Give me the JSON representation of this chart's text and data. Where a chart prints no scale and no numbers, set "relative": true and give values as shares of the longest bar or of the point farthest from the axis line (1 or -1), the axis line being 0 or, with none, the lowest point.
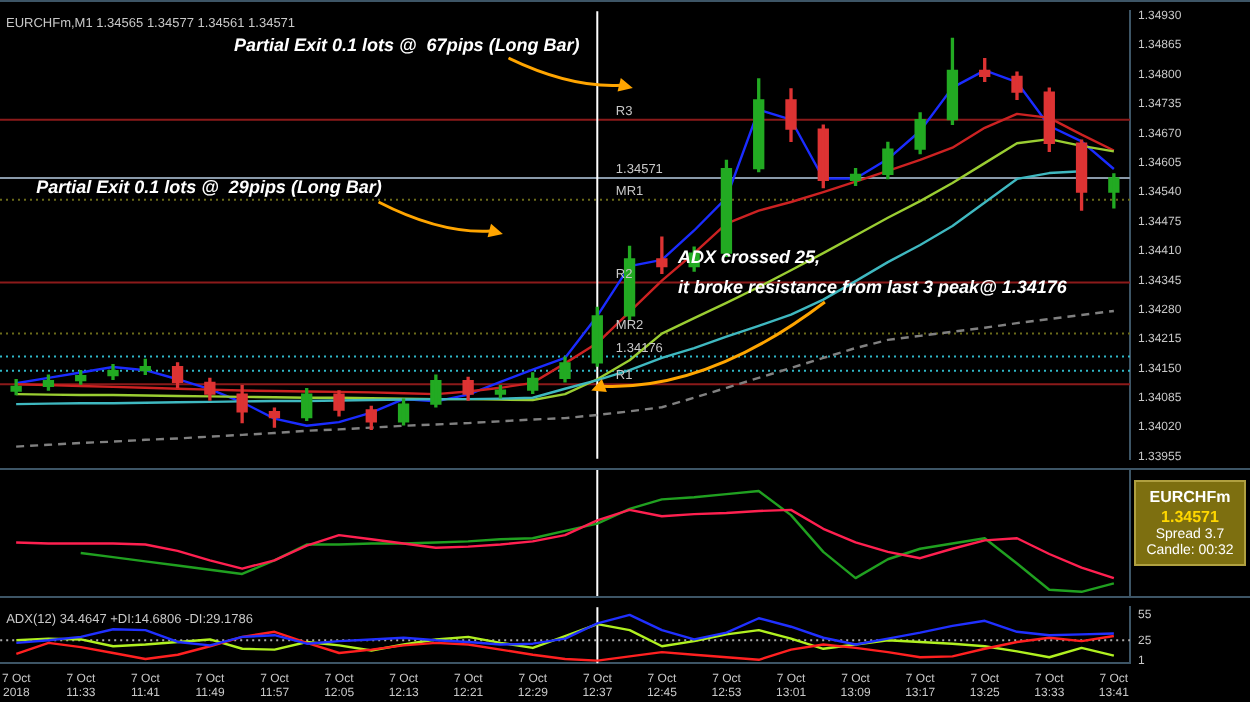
{
  "chart_data": [
    {
      "type": "candlestick",
      "title": "EURCHFm,M1 1.34565 1.34577 1.34561 1.34571",
      "categories": [
        "7 Oct 2018",
        null,
        "7 Oct 11:33",
        null,
        "7 Oct 11:41",
        null,
        "7 Oct 11:49",
        null,
        "7 Oct 11:57",
        null,
        "7 Oct 12:05",
        null,
        "7 Oct 12:13",
        null,
        "7 Oct 12:21",
        null,
        "7 Oct 12:29",
        null,
        "7 Oct 12:37",
        null,
        "7 Oct 12:45",
        null,
        "7 Oct 12:53",
        null,
        "7 Oct 13:01",
        null,
        "7 Oct 13:09",
        null,
        "7 Oct 13:17",
        null,
        "7 Oct 13:25",
        null,
        "7 Oct 13:33",
        null,
        "7 Oct 13:41"
      ],
      "ohlc": [
        [
          1.341,
          1.34125,
          1.34092,
          1.3411
        ],
        [
          1.3411,
          1.34135,
          1.34102,
          1.34123
        ],
        [
          1.34123,
          1.34145,
          1.34115,
          1.34134
        ],
        [
          1.34134,
          1.34158,
          1.34126,
          1.34145
        ],
        [
          1.34145,
          1.3417,
          1.34137,
          1.34154
        ],
        [
          1.34154,
          1.34162,
          1.34108,
          1.34119
        ],
        [
          1.34119,
          1.34128,
          1.3408,
          1.34093
        ],
        [
          1.34093,
          1.34112,
          1.3403,
          1.34054
        ],
        [
          1.34054,
          1.34062,
          1.3402,
          1.34041
        ],
        [
          1.34041,
          1.34105,
          1.34035,
          1.34093
        ],
        [
          1.34093,
          1.341,
          1.34045,
          1.34058
        ],
        [
          1.34058,
          1.34066,
          1.34015,
          1.34032
        ],
        [
          1.34032,
          1.34082,
          1.34025,
          1.34071
        ],
        [
          1.34071,
          1.34135,
          1.34065,
          1.34123
        ],
        [
          1.34123,
          1.3413,
          1.3408,
          1.34093
        ],
        [
          1.34093,
          1.34112,
          1.34085,
          1.34102
        ],
        [
          1.34102,
          1.3414,
          1.34095,
          1.34128
        ],
        [
          1.34128,
          1.34175,
          1.3412,
          1.34162
        ],
        [
          1.34162,
          1.34285,
          1.34155,
          1.34266
        ],
        [
          1.34266,
          1.3442,
          1.34258,
          1.34392
        ],
        [
          1.34392,
          1.3444,
          1.3436,
          1.34375
        ],
        [
          1.34375,
          1.34418,
          1.34365,
          1.34405
        ],
        [
          1.34405,
          1.3461,
          1.34398,
          1.34592
        ],
        [
          1.34592,
          1.3479,
          1.34585,
          1.34744
        ],
        [
          1.34744,
          1.34768,
          1.34652,
          1.34679
        ],
        [
          1.34679,
          1.34688,
          1.3455,
          1.34566
        ],
        [
          1.34566,
          1.34592,
          1.34555,
          1.34579
        ],
        [
          1.34579,
          1.3465,
          1.3457,
          1.34635
        ],
        [
          1.34635,
          1.34715,
          1.34625,
          1.347
        ],
        [
          1.347,
          1.3488,
          1.3469,
          1.34809
        ],
        [
          1.34809,
          1.34835,
          1.34785,
          1.34796
        ],
        [
          1.34796,
          1.34805,
          1.34745,
          1.34761
        ],
        [
          1.34761,
          1.3477,
          1.3463,
          1.34648
        ],
        [
          1.34648,
          1.34655,
          1.345,
          1.3454
        ],
        [
          1.3454,
          1.3458,
          1.34505,
          1.34571
        ]
      ],
      "colors": [
        "#22aa22",
        "#22aa22",
        "#22aa22",
        "#22aa22",
        "#22aa22",
        "#dd3333",
        "#dd3333",
        "#dd3333",
        "#dd3333",
        "#22aa22",
        "#dd3333",
        "#dd3333",
        "#22aa22",
        "#22aa22",
        "#dd3333",
        "#22aa22",
        "#22aa22",
        "#22aa22",
        "#22aa22",
        "#22aa22",
        "#dd3333",
        "#22aa22",
        "#22aa22",
        "#22aa22",
        "#dd3333",
        "#dd3333",
        "#22aa22",
        "#22aa22",
        "#22aa22",
        "#22aa22",
        "#dd3333",
        "#dd3333",
        "#dd3333",
        "#dd3333",
        "#22aa22"
      ],
      "series": [
        {
          "type": "line",
          "color": "#808080",
          "line_style": "dashed",
          "values": [
            1.33977,
            1.33981,
            1.33985,
            1.33988,
            1.33992,
            1.33995,
            1.33999,
            1.34003,
            1.34007,
            1.34012,
            1.34015,
            1.34019,
            1.34023,
            1.34026,
            1.34029,
            1.34033,
            1.34037,
            1.3404,
            1.34047,
            1.34055,
            1.34064,
            1.34085,
            1.34107,
            1.34129,
            1.34151,
            1.34173,
            1.34195,
            1.34213,
            1.34222,
            1.34231,
            1.3424,
            1.3425,
            1.34259,
            1.34268,
            1.34277
          ]
        },
        {
          "type": "line",
          "color": "#3fb8c0",
          "line_style": "solid",
          "values": [
            1.34071,
            1.34072,
            1.34073,
            1.34073,
            1.34074,
            1.34075,
            1.34076,
            1.34077,
            1.34078,
            1.34078,
            1.34079,
            1.3408,
            1.34081,
            1.34082,
            1.34082,
            1.34083,
            1.34085,
            1.34105,
            1.34124,
            1.34146,
            1.34173,
            1.34195,
            1.3422,
            1.34244,
            1.34269,
            1.34302,
            1.34343,
            1.34385,
            1.34423,
            1.34465,
            1.34517,
            1.34569,
            1.34582,
            1.34586,
            null
          ]
        },
        {
          "type": "line",
          "color": "#9acd32",
          "line_style": "solid",
          "values": [
            1.34093,
            1.34092,
            1.34091,
            1.34091,
            1.3409,
            1.34089,
            1.34088,
            1.34087,
            1.34086,
            1.34085,
            1.34085,
            1.34084,
            1.34083,
            1.34082,
            1.34082,
            1.34081,
            1.3408,
            1.34093,
            1.34126,
            1.34168,
            1.34227,
            1.34261,
            1.34295,
            1.3433,
            1.34367,
            1.34405,
            1.34444,
            1.34483,
            1.3452,
            1.3456,
            1.34604,
            1.34648,
            1.34657,
            1.34642,
            1.3463
          ]
        },
        {
          "type": "line",
          "color": "#cc2222",
          "line_style": "solid",
          "values": [
            1.34115,
            1.34113,
            1.34111,
            1.34109,
            1.34107,
            1.34105,
            1.34103,
            1.34101,
            1.341,
            1.34099,
            1.34098,
            1.34097,
            1.34095,
            1.34093,
            1.34099,
            1.34107,
            1.34118,
            1.34161,
            1.34206,
            1.34275,
            1.34344,
            1.34405,
            1.3447,
            1.34499,
            1.34518,
            1.3454,
            1.34563,
            1.34587,
            1.34611,
            1.34638,
            1.34682,
            1.34713,
            1.34704,
            1.34667,
            1.34632
          ]
        },
        {
          "type": "line",
          "color": "#1a2cff",
          "line_style": "solid",
          "values": [
            1.34117,
            1.34129,
            1.34141,
            1.34153,
            1.34146,
            1.34126,
            1.34104,
            1.34075,
            1.34039,
            1.34023,
            1.34031,
            1.34052,
            1.34082,
            1.34077,
            1.34092,
            1.3412,
            1.34147,
            1.34173,
            1.34266,
            1.34376,
            1.3439,
            1.34455,
            1.34527,
            1.34722,
            1.347,
            1.3457,
            1.3457,
            1.34613,
            1.34675,
            1.34771,
            1.34809,
            1.34783,
            1.34686,
            1.34652,
            1.34591
          ]
        }
      ],
      "ylim": [
        1.3395,
        1.3494
      ],
      "yticks": [
        {
          "value": 1.3493,
          "label": "1.34930"
        },
        {
          "value": 1.34865,
          "label": "1.34865"
        },
        {
          "value": 1.348,
          "label": "1.34800"
        },
        {
          "value": 1.34735,
          "label": "1.34735"
        },
        {
          "value": 1.3467,
          "label": "1.34670"
        },
        {
          "value": 1.34605,
          "label": "1.34605"
        },
        {
          "value": 1.3454,
          "label": "1.34540"
        },
        {
          "value": 1.34475,
          "label": "1.34475"
        },
        {
          "value": 1.3441,
          "label": "1.34410"
        },
        {
          "value": 1.34345,
          "label": "1.34345"
        },
        {
          "value": 1.3428,
          "label": "1.34280"
        },
        {
          "value": 1.34215,
          "label": "1.34215"
        },
        {
          "value": 1.3415,
          "label": "1.34150"
        },
        {
          "value": 1.34085,
          "label": "1.34085"
        },
        {
          "value": 1.3402,
          "label": "1.34020"
        },
        {
          "value": 1.33955,
          "label": "1.33955"
        }
      ],
      "tick_labels": "y",
      "ref_lines": [
        {
          "axis": "y",
          "value": 1.347,
          "label": "R3",
          "color": "#8b1a1a",
          "line_style": "solid"
        },
        {
          "axis": "y",
          "value": 1.34571,
          "label": "1.34571",
          "color": "#8a9aaa",
          "line_style": "solid"
        },
        {
          "axis": "y",
          "value": 1.34523,
          "label": "MR1",
          "color": "#6b6b1a",
          "line_style": "dotted"
        },
        {
          "axis": "y",
          "value": 1.3434,
          "label": "R2",
          "color": "#8b1a1a",
          "line_style": "solid"
        },
        {
          "axis": "y",
          "value": 1.34227,
          "label": "MR2",
          "color": "#6b6b1a",
          "line_style": "dotted"
        },
        {
          "axis": "y",
          "value": 1.34176,
          "label": "1.34176",
          "color": "#2fb8c8",
          "line_style": "dotted"
        },
        {
          "axis": "y",
          "value": 1.34145,
          "color": "#2fb8c8",
          "line_style": "dotted"
        },
        {
          "axis": "y",
          "value": 1.34115,
          "label": "R1",
          "color": "#8b1a1a",
          "line_style": "solid"
        },
        {
          "axis": "x",
          "value": "7 Oct 12:37",
          "color": "#ffffff",
          "line_style": "solid"
        }
      ],
      "annotations": [
        "Partial Exit 0.1 lots @  67pips (Long Bar)",
        "Partial Exit 0.1 lots @  29pips (Long Bar)",
        {
          "text": "ADX crossed 25,\nit broke resistance from last 3 peak@ 1.34176",
          "x": "7 Oct 12:37",
          "y": 1.34101
        }
      ]
    },
    {
      "type": "line",
      "relative": true,
      "categories": [
        "7 Oct 2018",
        null,
        "7 Oct 11:33",
        null,
        "7 Oct 11:41",
        null,
        "7 Oct 11:49",
        null,
        "7 Oct 11:57",
        null,
        "7 Oct 12:05",
        null,
        "7 Oct 12:13",
        null,
        "7 Oct 12:21",
        null,
        "7 Oct 12:29",
        null,
        "7 Oct 12:37",
        null,
        "7 Oct 12:45",
        null,
        "7 Oct 12:53",
        null,
        "7 Oct 13:01",
        null,
        "7 Oct 13:09",
        null,
        "7 Oct 13:17",
        null,
        "7 Oct 13:25",
        null,
        "7 Oct 13:33",
        null,
        "7 Oct 13:41"
      ],
      "series": [
        {
          "color": "#ff2050",
          "values": [
            0.51,
            0.5,
            0.5,
            0.5,
            0.49,
            0.43,
            0.34,
            0.26,
            0.34,
            0.48,
            0.58,
            0.54,
            0.5,
            0.46,
            0.47,
            0.49,
            0.52,
            0.58,
            0.72,
            0.82,
            0.76,
            0.78,
            0.79,
            0.81,
            0.82,
            0.64,
            0.51,
            0.42,
            0.36,
            0.45,
            0.53,
            0.55,
            0.4,
            0.27,
            0.17
          ]
        },
        {
          "color": "#20a020",
          "values": [
            null,
            null,
            0.41,
            0.37,
            0.33,
            0.29,
            0.25,
            0.21,
            0.34,
            0.49,
            0.49,
            0.5,
            0.5,
            0.51,
            0.52,
            0.54,
            0.55,
            0.62,
            0.69,
            0.83,
            0.92,
            0.94,
            0.97,
            1,
            0.77,
            0.42,
            0.17,
            0.35,
            0.45,
            0.5,
            0.55,
            0.31,
            0.06,
            0.04,
            0.12
          ]
        }
      ],
      "tick_labels": false,
      "ref_lines": [
        {
          "axis": "x",
          "value": "7 Oct 12:37",
          "color": "#ffffff",
          "line_style": "solid"
        }
      ],
      "annotations": [
        "EURCHFm",
        "1.34571",
        "Spread 3.7",
        "Candle: 00:32"
      ]
    },
    {
      "type": "line",
      "title": "ADX(12) 34.4647 +DI:14.6806 -DI:29.1786",
      "categories": [
        "7 Oct 2018",
        null,
        "7 Oct 11:33",
        null,
        "7 Oct 11:41",
        null,
        "7 Oct 11:49",
        null,
        "7 Oct 11:57",
        null,
        "7 Oct 12:05",
        null,
        "7 Oct 12:13",
        null,
        "7 Oct 12:21",
        null,
        "7 Oct 12:29",
        null,
        "7 Oct 12:37",
        null,
        "7 Oct 12:45",
        null,
        "7 Oct 12:53",
        null,
        "7 Oct 13:01",
        null,
        "7 Oct 13:09",
        null,
        "7 Oct 13:17",
        null,
        "7 Oct 13:25",
        null,
        "7 Oct 13:33",
        null,
        "7 Oct 13:41"
      ],
      "series": [
        {
          "color": "#2030ff",
          "values": [
            22,
            25,
            29,
            38,
            37,
            23,
            19,
            29,
            31,
            21,
            24,
            26,
            28,
            25,
            23,
            20,
            21,
            27,
            45,
            55,
            37,
            26,
            34,
            51,
            41,
            28,
            20,
            27,
            34,
            42,
            48,
            35,
            31,
            32,
            33
          ]
        },
        {
          "color": "#ff2020",
          "values": [
            9,
            22,
            17,
            10,
            3,
            8,
            18,
            29,
            35,
            22,
            10,
            14,
            19,
            22,
            20,
            14,
            8,
            3,
            1,
            6,
            11,
            8,
            5,
            2,
            14,
            20,
            16,
            11,
            5,
            6,
            15,
            23,
            28,
            24,
            30
          ]
        },
        {
          "color": "#b0f020",
          "values": [
            25,
            27,
            26,
            18,
            20,
            23,
            26,
            15,
            14,
            23,
            19,
            13,
            20,
            26,
            29,
            22,
            16,
            30,
            44,
            37,
            18,
            24,
            32,
            37,
            27,
            15,
            20,
            25,
            23,
            21,
            18,
            12,
            5,
            16,
            7
          ]
        }
      ],
      "ylim": [
        -2,
        64
      ],
      "yticks": [
        55,
        25,
        1
      ],
      "ref_lines": [
        {
          "axis": "y",
          "value": 25,
          "color": "#aaaaaa",
          "line_style": "dotted"
        },
        {
          "axis": "x",
          "value": "7 Oct 12:37",
          "color": "#ffffff",
          "line_style": "solid"
        }
      ]
    }
  ]
}
